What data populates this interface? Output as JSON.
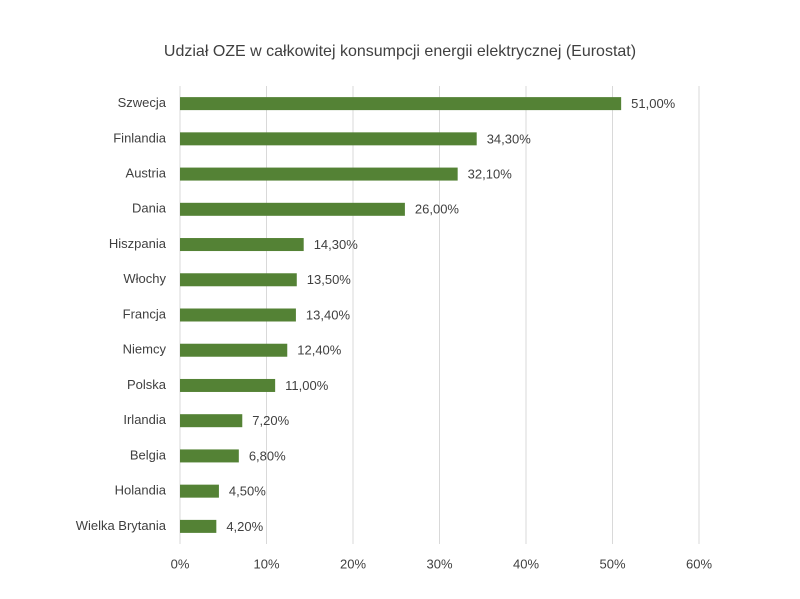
{
  "chart_data": {
    "type": "bar",
    "orientation": "horizontal",
    "title": "Udział OZE w całkowitej konsumpcji energii elektrycznej (Eurostat)",
    "categories": [
      "Szwecja",
      "Finlandia",
      "Austria",
      "Dania",
      "Hiszpania",
      "Włochy",
      "Francja",
      "Niemcy",
      "Polska",
      "Irlandia",
      "Belgia",
      "Holandia",
      "Wielka Brytania"
    ],
    "values": [
      51,
      34.3,
      32.1,
      26,
      14.3,
      13.5,
      13.4,
      12.4,
      11,
      7.2,
      6.8,
      4.5,
      4.2
    ],
    "value_labels": [
      "51,00%",
      "34,30%",
      "32,10%",
      "26,00%",
      "14,30%",
      "13,50%",
      "13,40%",
      "12,40%",
      "11,00%",
      "7,20%",
      "6,80%",
      "4,50%",
      "4,20%"
    ],
    "color": "#548235",
    "xlim": [
      0,
      60
    ],
    "xticks": [
      {
        "value": 0,
        "label": "0%"
      },
      {
        "value": 10,
        "label": "10%"
      },
      {
        "value": 20,
        "label": "20%"
      },
      {
        "value": 30,
        "label": "30%"
      },
      {
        "value": 40,
        "label": "40%"
      },
      {
        "value": 50,
        "label": "50%"
      },
      {
        "value": 60,
        "label": "60%"
      }
    ],
    "grid": true
  }
}
